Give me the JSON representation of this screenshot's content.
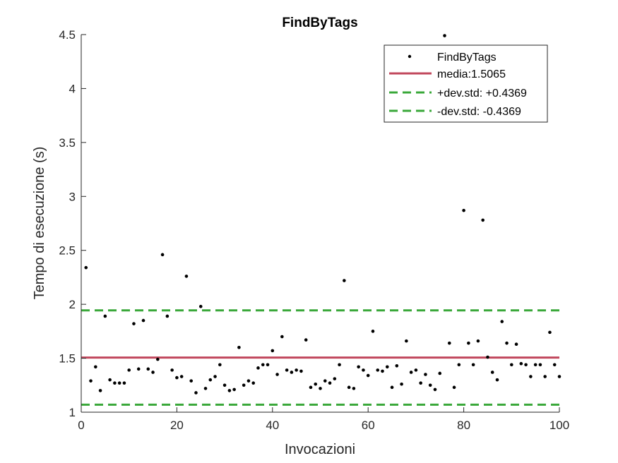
{
  "chart_data": {
    "type": "scatter",
    "title": "FindByTags",
    "xlabel": "Invocazioni",
    "ylabel": "Tempo di esecuzione (s)",
    "xlim": [
      0,
      100
    ],
    "ylim": [
      1,
      4.5
    ],
    "xticks": [
      "0",
      "20",
      "40",
      "60",
      "80",
      "100"
    ],
    "yticks": [
      "1",
      "1.5",
      "2",
      "2.5",
      "3",
      "3.5",
      "4",
      "4.5"
    ],
    "grid": false,
    "legend_position": "top-right",
    "colors": {
      "points": "#000000",
      "mean": "#c1475c",
      "std": "#3aa83a"
    },
    "series": [
      {
        "name": "FindByTags",
        "style": "dots",
        "x": [
          1,
          2,
          3,
          4,
          5,
          6,
          7,
          8,
          9,
          10,
          11,
          12,
          13,
          14,
          15,
          16,
          17,
          18,
          19,
          20,
          21,
          22,
          23,
          24,
          25,
          26,
          27,
          28,
          29,
          30,
          31,
          32,
          33,
          34,
          35,
          36,
          37,
          38,
          39,
          40,
          41,
          42,
          43,
          44,
          45,
          46,
          47,
          48,
          49,
          50,
          51,
          52,
          53,
          54,
          55,
          56,
          57,
          58,
          59,
          60,
          61,
          62,
          63,
          64,
          65,
          66,
          67,
          68,
          69,
          70,
          71,
          72,
          73,
          74,
          75,
          76,
          77,
          78,
          79,
          80,
          81,
          82,
          83,
          84,
          85,
          86,
          87,
          88,
          89,
          90,
          91,
          92,
          93,
          94,
          95,
          96,
          97,
          98,
          99,
          100
        ],
        "y": [
          2.34,
          1.29,
          1.42,
          1.2,
          1.89,
          1.3,
          1.27,
          1.27,
          1.27,
          1.39,
          1.82,
          1.4,
          1.85,
          1.4,
          1.37,
          1.49,
          2.46,
          1.89,
          1.39,
          1.32,
          1.33,
          2.26,
          1.29,
          1.18,
          1.98,
          1.22,
          1.3,
          1.33,
          1.44,
          1.25,
          1.2,
          1.21,
          1.6,
          1.25,
          1.29,
          1.27,
          1.41,
          1.44,
          1.44,
          1.57,
          1.35,
          1.7,
          1.39,
          1.37,
          1.39,
          1.38,
          1.67,
          1.23,
          1.26,
          1.22,
          1.29,
          1.27,
          1.31,
          1.44,
          2.22,
          1.23,
          1.22,
          1.42,
          1.39,
          1.34,
          1.75,
          1.39,
          1.38,
          1.42,
          1.23,
          1.43,
          1.26,
          1.66,
          1.37,
          1.39,
          1.27,
          1.35,
          1.25,
          1.21,
          1.36,
          4.49,
          1.64,
          1.23,
          1.44,
          2.87,
          1.64,
          1.44,
          1.66,
          2.78,
          1.51,
          1.37,
          1.3,
          1.84,
          1.64,
          1.44,
          1.63,
          1.45,
          1.44,
          1.33,
          1.44,
          1.44,
          1.33,
          1.74,
          1.44,
          1.33
        ]
      },
      {
        "name": "media:1.5065",
        "style": "solid",
        "value": 1.5065
      },
      {
        "name": "+dev.std: +0.4369",
        "style": "dashed",
        "value": 1.9434
      },
      {
        "name": "-dev.std: -0.4369",
        "style": "dashed",
        "value": 1.0696
      }
    ]
  }
}
